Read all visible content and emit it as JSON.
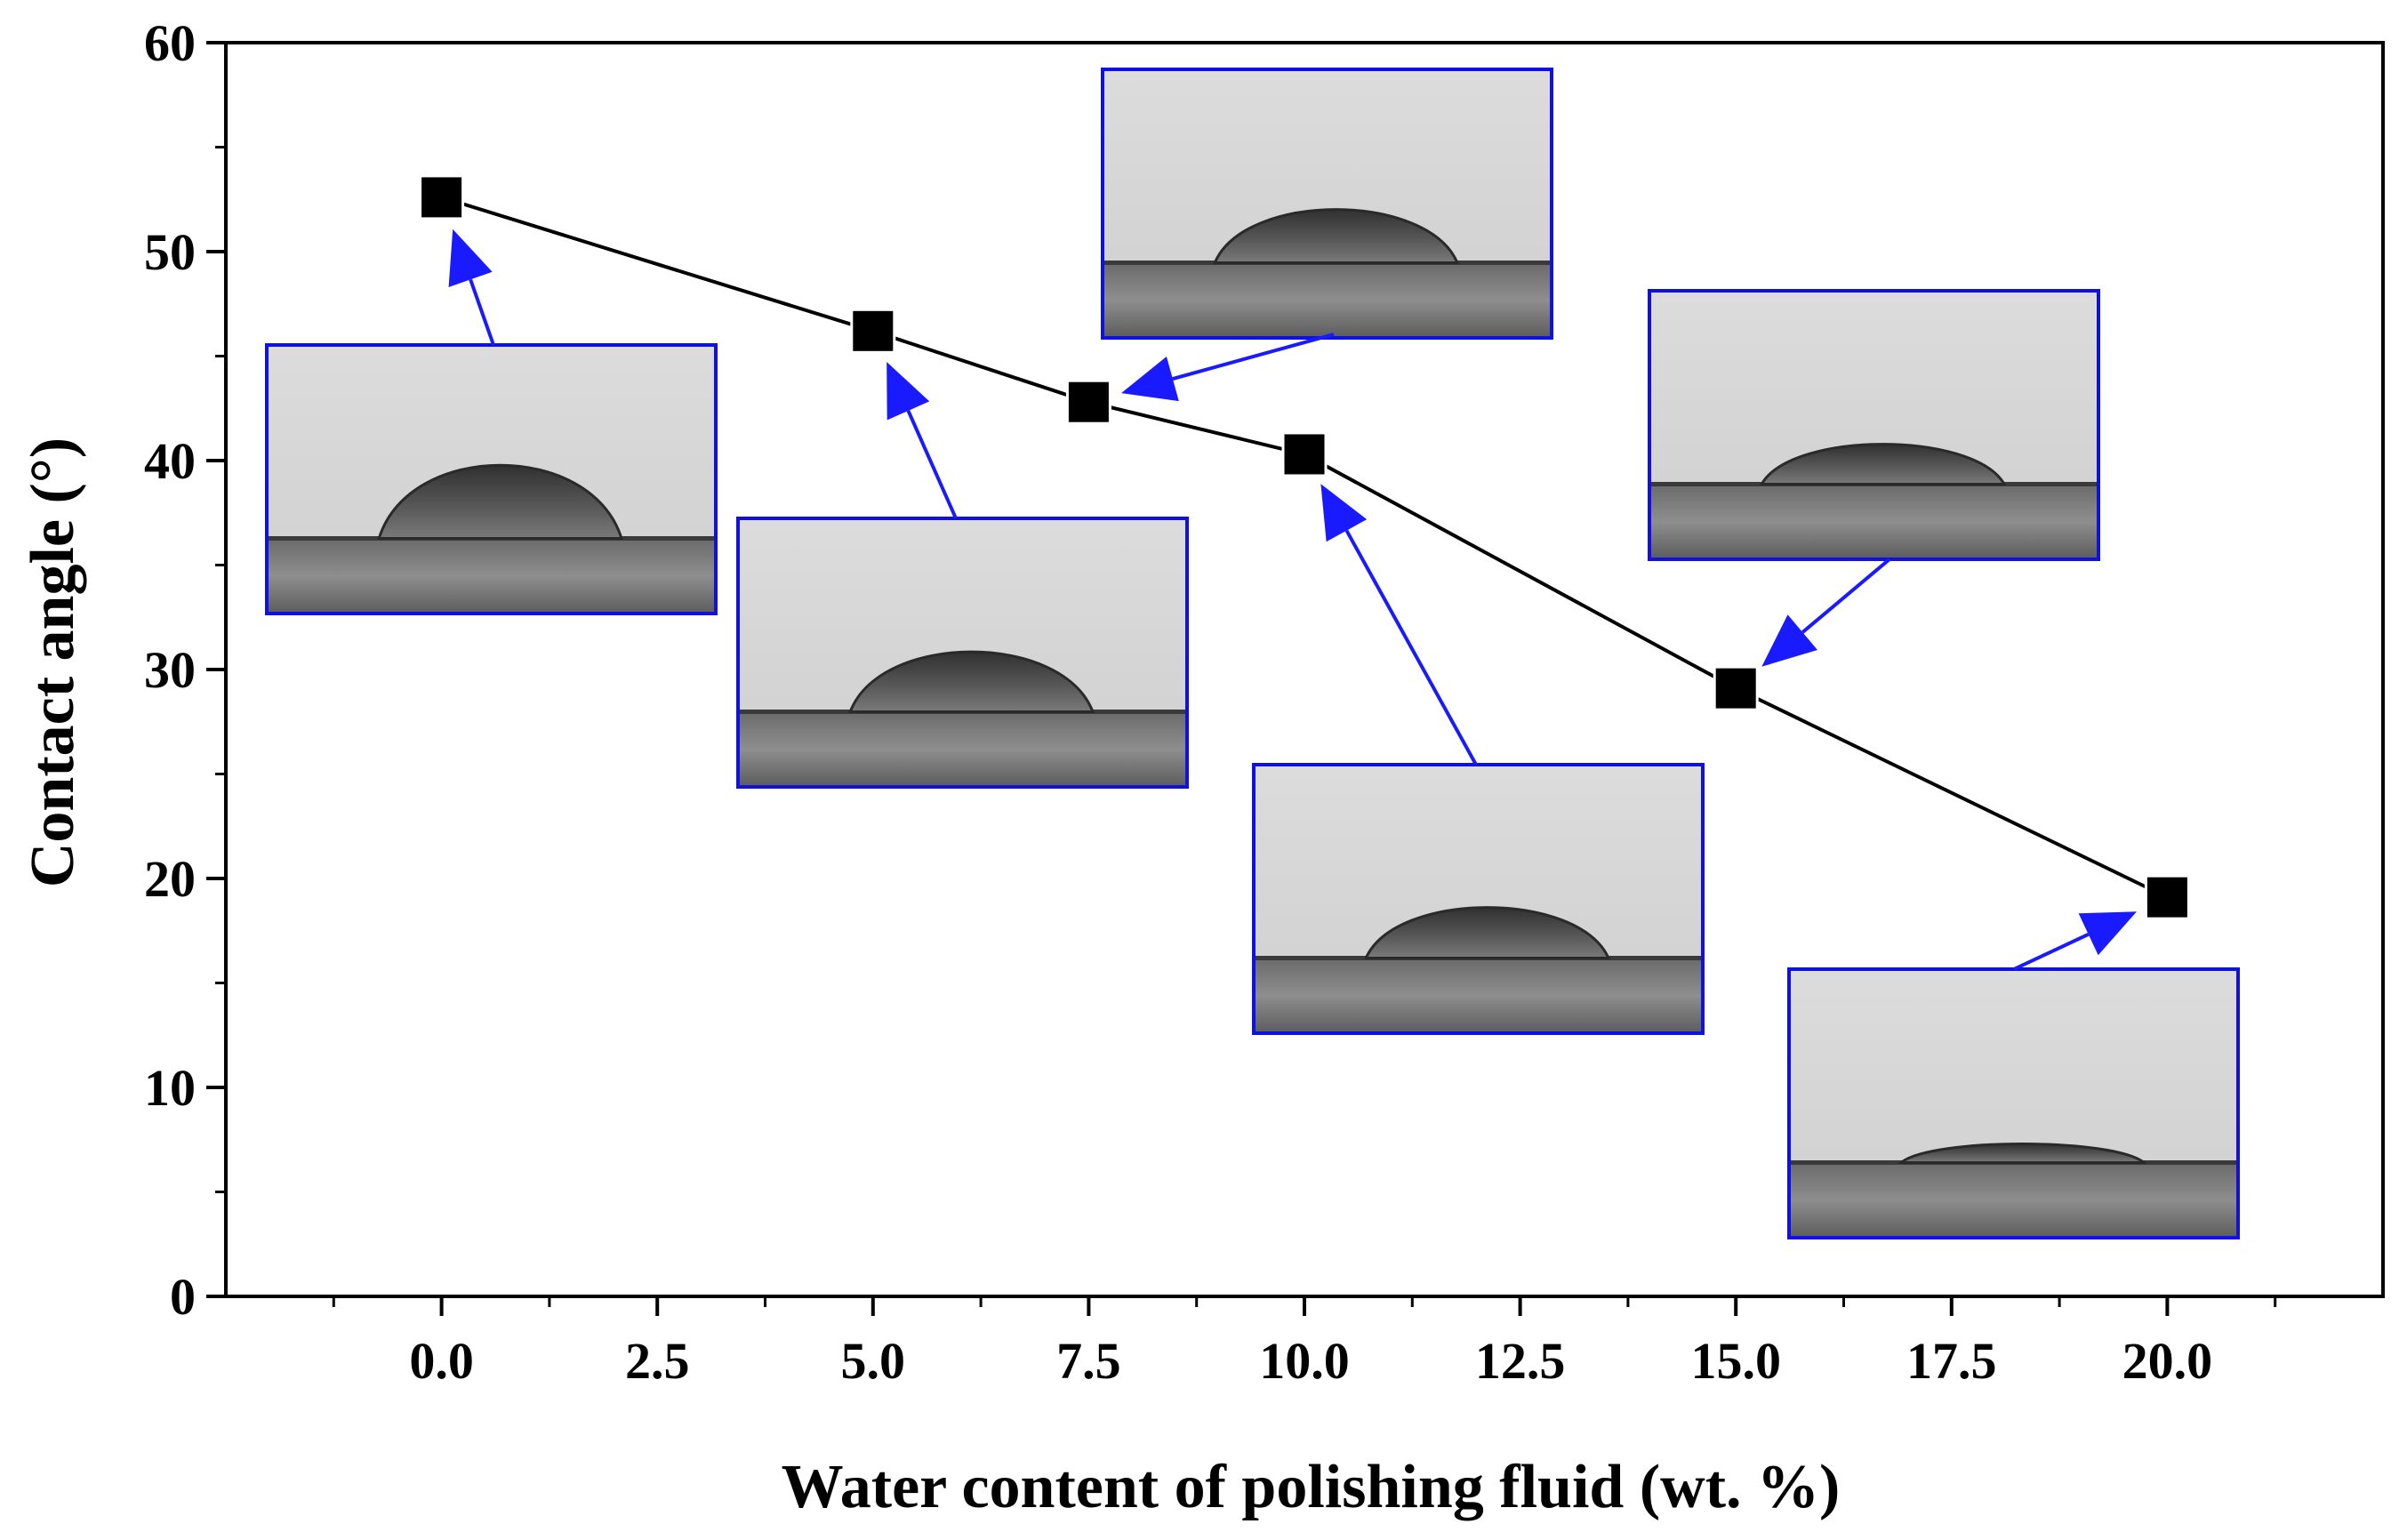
{
  "chart_data": {
    "type": "line",
    "title": "",
    "xlabel": "Water content of polishing fluid (wt. %)",
    "ylabel": "Contact angle (°)",
    "xlim": [
      -2.5,
      22.5
    ],
    "ylim": [
      0,
      60
    ],
    "x_ticks": [
      0.0,
      2.5,
      5.0,
      7.5,
      10.0,
      12.5,
      15.0,
      17.5,
      20.0
    ],
    "x_tick_labels": [
      "0.0",
      "2.5",
      "5.0",
      "7.5",
      "10.0",
      "12.5",
      "15.0",
      "17.5",
      "20.0"
    ],
    "y_ticks": [
      0,
      10,
      20,
      30,
      40,
      50,
      60
    ],
    "y_tick_labels": [
      "0",
      "10",
      "20",
      "30",
      "40",
      "50",
      "60"
    ],
    "grid": false,
    "legend": "none",
    "series": [
      {
        "x": [
          0.0,
          5.0,
          7.5,
          10.0,
          15.0,
          20.0
        ],
        "values": [
          52.6,
          46.2,
          42.8,
          40.3,
          29.1,
          19.1
        ],
        "line_color": "#000000",
        "marker": "square",
        "marker_color": "#000000"
      }
    ],
    "annotations": {
      "type": "droplet-photo-inset",
      "border_color": "#1010e0",
      "arrow_color": "#1a1aff",
      "insets": [
        {
          "point_x": 0.0,
          "droplet_height": 0.55
        },
        {
          "point_x": 5.0,
          "droplet_height": 0.45
        },
        {
          "point_x": 7.5,
          "droplet_height": 0.4
        },
        {
          "point_x": 10.0,
          "droplet_height": 0.38
        },
        {
          "point_x": 15.0,
          "droplet_height": 0.3
        },
        {
          "point_x": 20.0,
          "droplet_height": 0.14
        }
      ]
    }
  }
}
